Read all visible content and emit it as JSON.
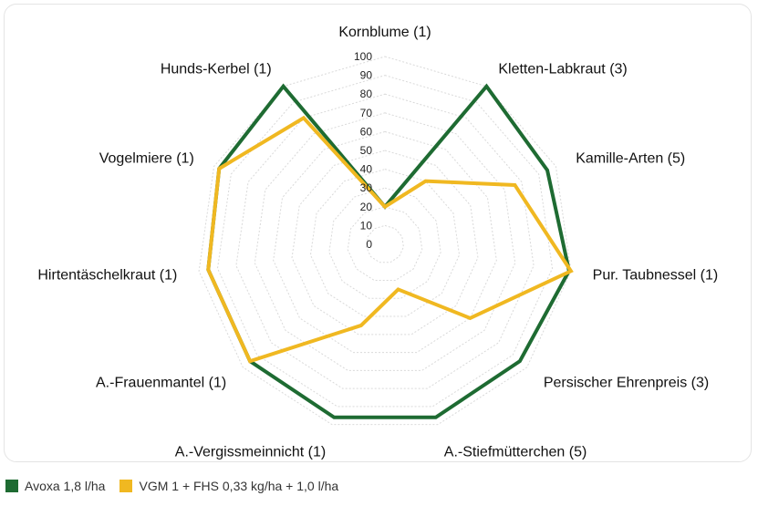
{
  "chart_data": {
    "type": "radar",
    "rmax": 100,
    "tick_labels": [
      "0",
      "10",
      "20",
      "30",
      "40",
      "50",
      "60",
      "70",
      "80",
      "90",
      "100"
    ],
    "tick_values": [
      0,
      10,
      20,
      30,
      40,
      50,
      60,
      70,
      80,
      90,
      100
    ],
    "categories": [
      "Kornblume (1)",
      "Kletten-Labkraut (3)",
      "Kamille-Arten (5)",
      "Pur. Taubnessel (1)",
      "Persischer Ehrenpreis (3)",
      "A.-Stiefmütterchen (5)",
      "A.-Vergissmeinnicht (1)",
      "A.-Frauenmantel (1)",
      "Hirtentäschelkraut (1)",
      "Vogelmiere (1)",
      "Hunds-Kerbel (1)"
    ],
    "series": [
      {
        "name": "Avoxa 1,8 l/ha",
        "color": "#1e6b32",
        "values": [
          20,
          100,
          95,
          99,
          95,
          96,
          96,
          95,
          95,
          97,
          100
        ]
      },
      {
        "name": "VGM 1 + FHS 0,33 kg/ha + 1,0 l/ha",
        "color": "#f0b821",
        "values": [
          20,
          40,
          76,
          100,
          60,
          25,
          45,
          95,
          95,
          97,
          80
        ]
      }
    ],
    "grid": true,
    "legend_position": "bottom-left"
  }
}
